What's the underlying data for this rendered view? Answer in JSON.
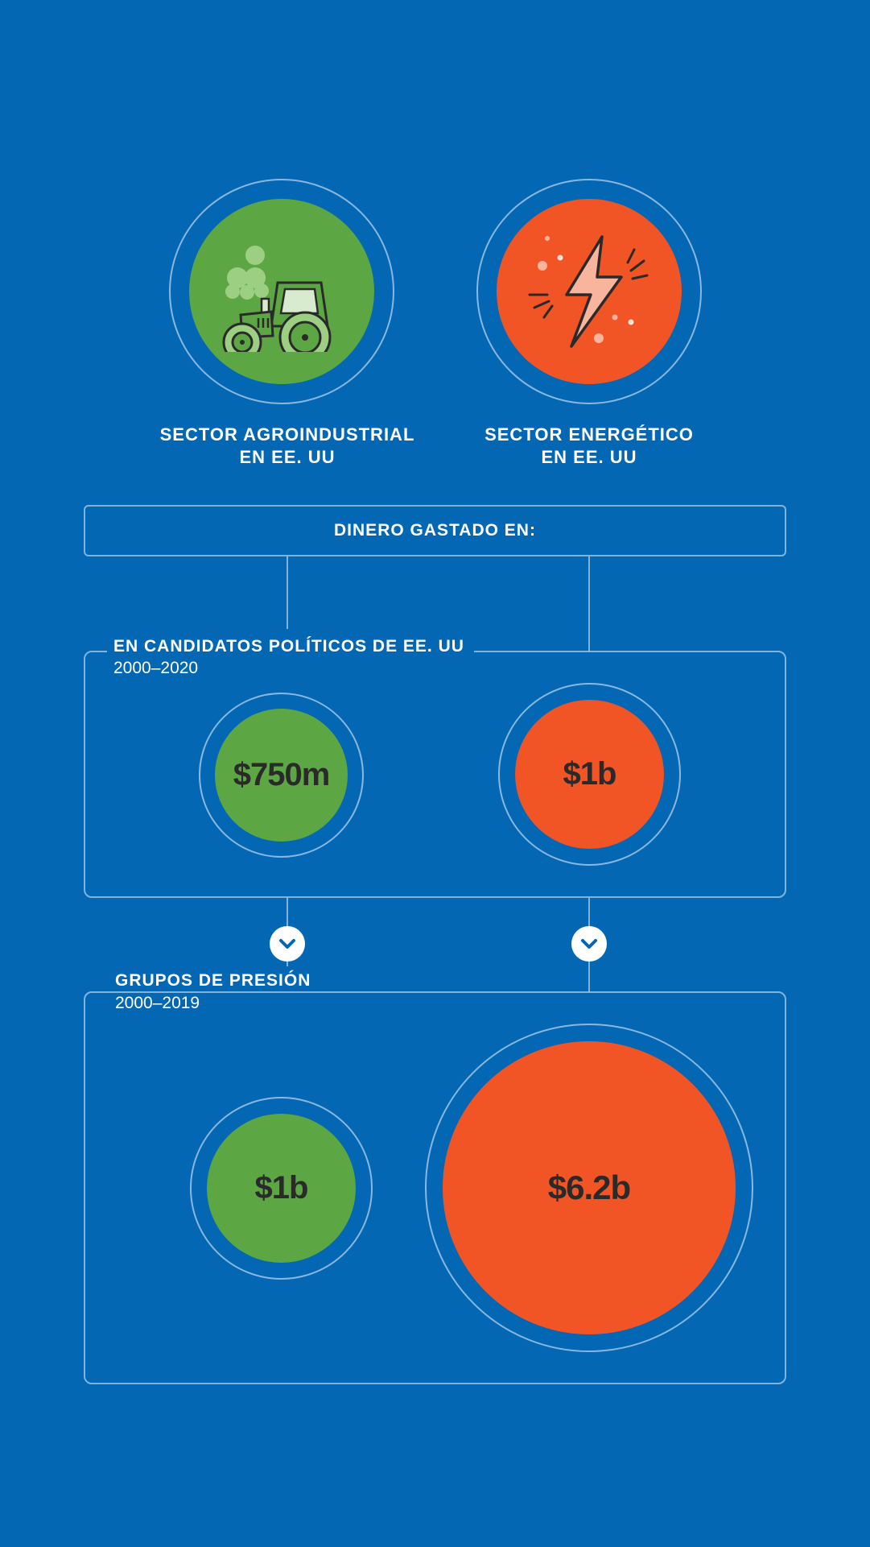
{
  "colors": {
    "background": "#0367b3",
    "agro": "#5ca744",
    "energy": "#f25525",
    "ring": "#aacdeb",
    "value_text": "#2a2a2a"
  },
  "sectors": [
    {
      "icon": "tractor-icon",
      "label_line1": "SECTOR AGROINDUSTRIAL",
      "label_line2": "EN EE. UU"
    },
    {
      "icon": "lightning-icon",
      "label_line1": "SECTOR ENERGÉTICO",
      "label_line2": "EN EE. UU"
    }
  ],
  "header": {
    "label": "DINERO GASTADO EN:"
  },
  "candidates": {
    "title": "EN CANDIDATOS POLÍTICOS DE EE. UU",
    "period": "2000–2020",
    "agro_value": "$750m",
    "energy_value": "$1b"
  },
  "lobby": {
    "title": "GRUPOS DE PRESIÓN",
    "period": "2000–2019",
    "agro_value": "$1b",
    "energy_value": "$6.2b"
  },
  "connector_icon": "chevron-down-icon"
}
